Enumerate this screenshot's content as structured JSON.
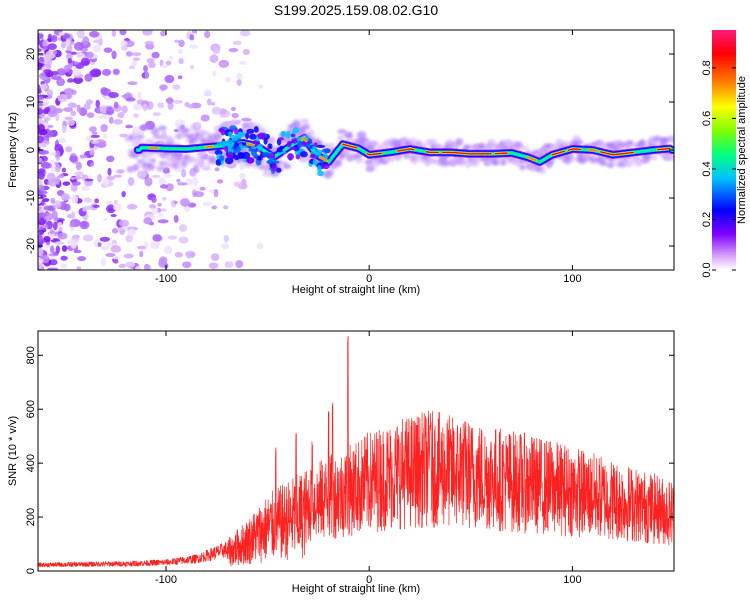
{
  "title": "S199.2025.159.08.02.G10",
  "chart_data": [
    {
      "type": "heatmap",
      "xlabel": "Height of straight line (km)",
      "ylabel": "Frequency (Hz)",
      "xlim": [
        -163,
        150
      ],
      "ylim": [
        -25,
        25
      ],
      "x_ticks": [
        -100,
        0,
        100
      ],
      "y_ticks": [
        -20,
        -10,
        0,
        10,
        20
      ],
      "colorbar": {
        "label": "Normalized spectral amplitude",
        "range": [
          0,
          0.95
        ],
        "ticks": [
          "0.0",
          "0.2",
          "0.4",
          "0.6",
          "0.8"
        ],
        "tick_values": [
          0.0,
          0.2,
          0.4,
          0.6,
          0.8
        ],
        "colors": [
          "#ffffff",
          "#e8c8ff",
          "#8000ff",
          "#0000ff",
          "#00bfff",
          "#00ff80",
          "#80ff00",
          "#ffff00",
          "#ff8000",
          "#ff0000",
          "#ff1a80"
        ]
      },
      "signal_track": [
        {
          "x": -112,
          "f": 0.5
        },
        {
          "x": -100,
          "f": 0.3
        },
        {
          "x": -90,
          "f": 0.2
        },
        {
          "x": -80,
          "f": 0.6
        },
        {
          "x": -70,
          "f": 1.0
        },
        {
          "x": -62,
          "f": 1.5
        },
        {
          "x": -55,
          "f": 0.8
        },
        {
          "x": -47,
          "f": -1.5
        },
        {
          "x": -40,
          "f": 0.5
        },
        {
          "x": -32,
          "f": 2.5
        },
        {
          "x": -26,
          "f": -1.0
        },
        {
          "x": -20,
          "f": -2.5
        },
        {
          "x": -13,
          "f": 1.2
        },
        {
          "x": -5,
          "f": 0.3
        },
        {
          "x": 0,
          "f": -1.0
        },
        {
          "x": 10,
          "f": -0.5
        },
        {
          "x": 20,
          "f": 0.2
        },
        {
          "x": 30,
          "f": -0.5
        },
        {
          "x": 40,
          "f": -0.5
        },
        {
          "x": 50,
          "f": -0.8
        },
        {
          "x": 60,
          "f": -0.8
        },
        {
          "x": 70,
          "f": -0.6
        },
        {
          "x": 78,
          "f": -1.5
        },
        {
          "x": 84,
          "f": -2.5
        },
        {
          "x": 90,
          "f": -1.0
        },
        {
          "x": 100,
          "f": 0.2
        },
        {
          "x": 110,
          "f": 0.0
        },
        {
          "x": 120,
          "f": -1.0
        },
        {
          "x": 130,
          "f": -0.5
        },
        {
          "x": 140,
          "f": 0.0
        },
        {
          "x": 148,
          "f": 0.3
        }
      ]
    },
    {
      "type": "line",
      "xlabel": "Height of straight line (km)",
      "ylabel": "SNR (10 * v/v)",
      "xlim": [
        -163,
        150
      ],
      "ylim": [
        0,
        890
      ],
      "x_ticks": [
        -100,
        0,
        100
      ],
      "y_ticks": [
        0,
        200,
        400,
        600,
        800
      ],
      "series_color": "#ff2020",
      "envelope": [
        {
          "x": -163,
          "y": 25
        },
        {
          "x": -120,
          "y": 30
        },
        {
          "x": -100,
          "y": 35
        },
        {
          "x": -85,
          "y": 50
        },
        {
          "x": -70,
          "y": 90
        },
        {
          "x": -60,
          "y": 150
        },
        {
          "x": -50,
          "y": 220
        },
        {
          "x": -40,
          "y": 260
        },
        {
          "x": -30,
          "y": 300
        },
        {
          "x": -20,
          "y": 330
        },
        {
          "x": -10,
          "y": 360
        },
        {
          "x": 0,
          "y": 400
        },
        {
          "x": 15,
          "y": 440
        },
        {
          "x": 30,
          "y": 460
        },
        {
          "x": 45,
          "y": 440
        },
        {
          "x": 60,
          "y": 420
        },
        {
          "x": 80,
          "y": 390
        },
        {
          "x": 100,
          "y": 360
        },
        {
          "x": 120,
          "y": 320
        },
        {
          "x": 135,
          "y": 290
        },
        {
          "x": 150,
          "y": 260
        }
      ],
      "peaks": [
        {
          "x": -10.5,
          "y": 890
        },
        {
          "x": -18,
          "y": 650
        },
        {
          "x": -20,
          "y": 620
        },
        {
          "x": -46,
          "y": 460
        },
        {
          "x": -36,
          "y": 520
        },
        {
          "x": -28,
          "y": 480
        },
        {
          "x": 30,
          "y": 560
        },
        {
          "x": 45,
          "y": 540
        }
      ]
    }
  ]
}
